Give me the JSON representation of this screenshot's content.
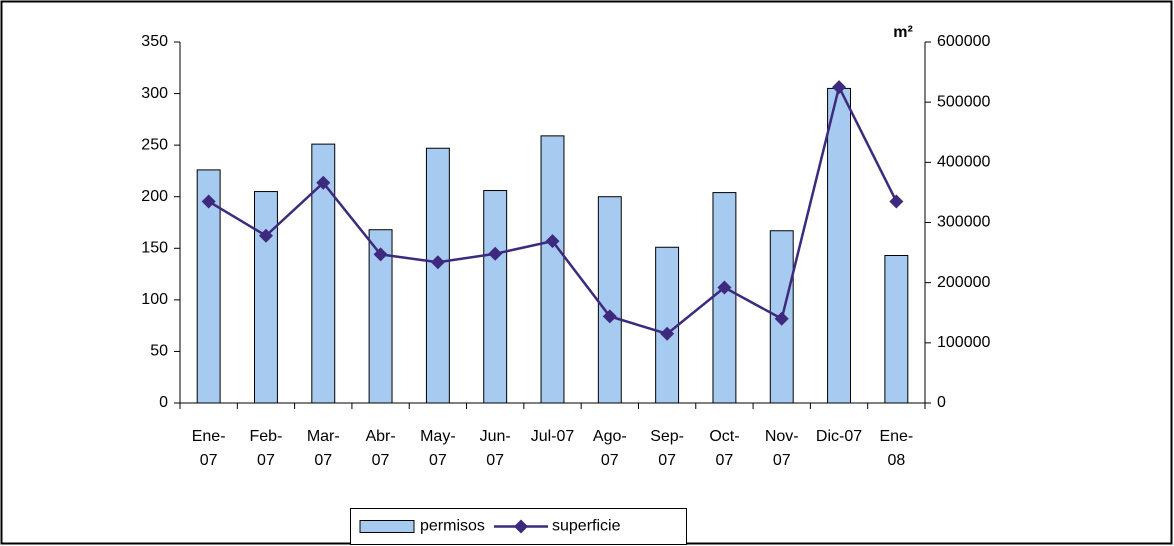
{
  "chart_data": {
    "type": "bar-line",
    "categories": [
      "Ene-07",
      "Feb-07",
      "Mar-07",
      "Abr-07",
      "May-07",
      "Jun-07",
      "Jul-07",
      "Ago-07",
      "Sep-07",
      "Oct-07",
      "Nov-07",
      "Dic-07",
      "Ene-08"
    ],
    "series": [
      {
        "name": "permisos",
        "type": "bar",
        "color": "#a6caf0",
        "values": [
          226,
          205,
          251,
          168,
          247,
          206,
          259,
          200,
          151,
          204,
          167,
          305,
          143
        ]
      },
      {
        "name": "superficie",
        "type": "line",
        "axis": "y2",
        "color": "#3d2a7e",
        "values": [
          335000,
          278000,
          366000,
          247000,
          234000,
          248000,
          269000,
          144000,
          115000,
          192000,
          140000,
          525000,
          335000
        ]
      }
    ],
    "ylim": [
      0,
      350
    ],
    "yticks": [
      0,
      50,
      100,
      150,
      200,
      250,
      300,
      350
    ],
    "y2lim": [
      0,
      600000
    ],
    "y2ticks": [
      0,
      100000,
      200000,
      300000,
      400000,
      500000,
      600000
    ],
    "y2label": "m²",
    "legend": "bottom"
  }
}
